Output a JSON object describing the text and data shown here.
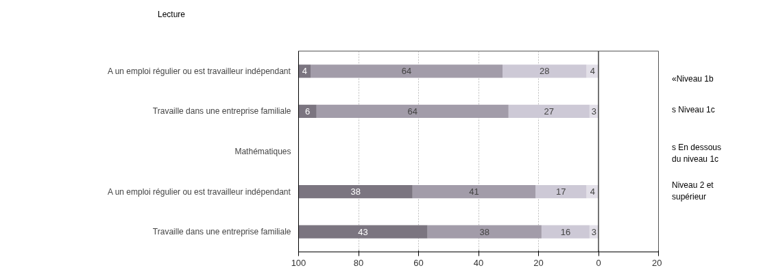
{
  "chart_data": {
    "type": "bar",
    "orientation": "horizontal",
    "stacked": true,
    "title": "Lecture",
    "categories": [
      "A un emploi régulier ou est travailleur indépendant",
      "Travaille dans une entreprise familiale",
      "Mathématiques",
      "A un emploi régulier ou est travailleur indépendant",
      "Travaille dans une entreprise familiale"
    ],
    "series": [
      {
        "color": "#e2dfe8",
        "values": [
          4,
          3,
          null,
          4,
          3
        ]
      },
      {
        "color": "#cdc9d6",
        "values": [
          28,
          27,
          null,
          17,
          16
        ]
      },
      {
        "color": "#a29ca9",
        "values": [
          64,
          64,
          null,
          41,
          38
        ]
      },
      {
        "color": "#7b7580",
        "values": [
          4,
          6,
          null,
          38,
          43
        ]
      }
    ],
    "xlim": [
      100,
      -20
    ],
    "xticks": [
      100,
      80,
      60,
      40,
      20,
      0,
      {
        "value": -20,
        "label": "20"
      }
    ],
    "grid": "x",
    "data_labels": true,
    "ref_lines": [
      {
        "axis": "x",
        "value": 0,
        "color": "#444444"
      }
    ],
    "annotations": [
      "«Niveau 1b",
      "s Niveau 1c",
      "s En dessous\ndu niveau 1c",
      "Niveau 2 et\nsupérieur"
    ]
  }
}
